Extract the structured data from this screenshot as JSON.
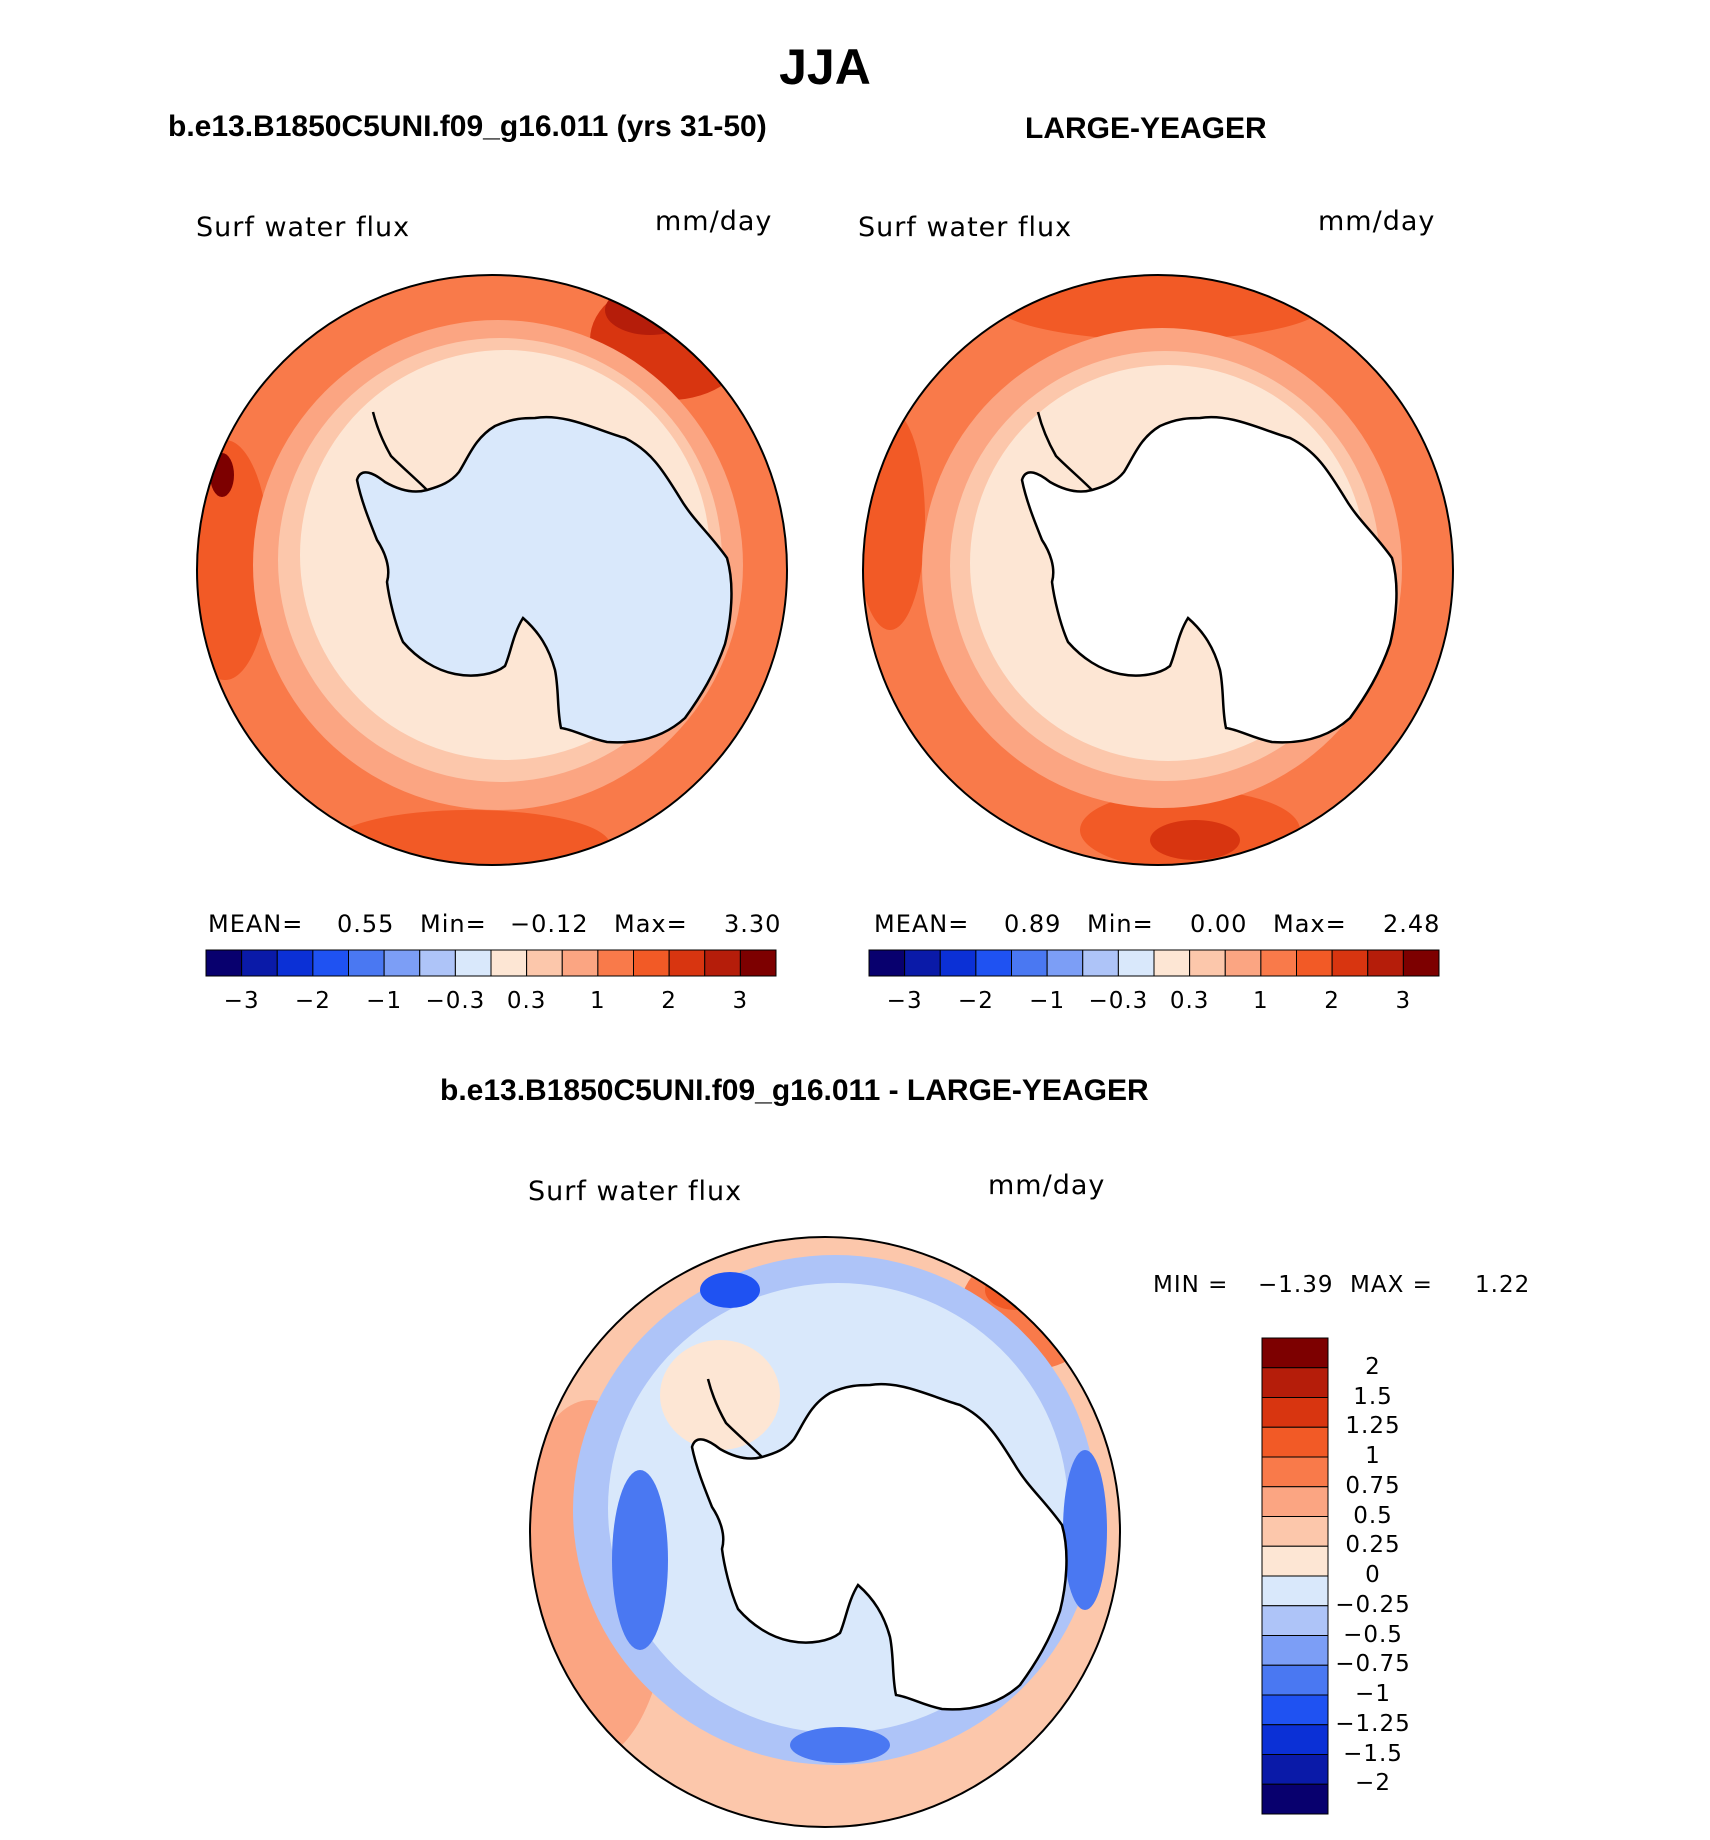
{
  "title": "JJA",
  "palette_main": [
    "#08006e",
    "#0a1aa8",
    "#0b30d6",
    "#1f52f2",
    "#4a78f2",
    "#7c9ef6",
    "#aec4f8",
    "#d9e8fb",
    "#fde6d4",
    "#fcc7ab",
    "#fba582",
    "#f97a4a",
    "#f25a26",
    "#d83510",
    "#b51d0a",
    "#7d0000"
  ],
  "palette_diff": [
    "#08006e",
    "#0a1aa8",
    "#0b30d6",
    "#1f52f2",
    "#4a78f2",
    "#7c9ef6",
    "#aec4f8",
    "#d9e8fb",
    "#fde6d4",
    "#fcc7ab",
    "#fba582",
    "#f97a4a",
    "#f25a26",
    "#d83510",
    "#b51d0a",
    "#7d0000"
  ],
  "panels": [
    {
      "case": "b.e13.B1850C5UNI.f09_g16.011 (yrs 31-50)",
      "variable": "Surf  water  flux",
      "units": "mm/day",
      "stats": {
        "mean_label": "MEAN=",
        "mean": "0.55",
        "min_label": "Min=",
        "min": "−0.12",
        "max_label": "Max=",
        "max": "3.30"
      },
      "colorbar_ticks": [
        "−3",
        "−2",
        "−1",
        "−0.3",
        "0.3",
        "1",
        "2",
        "3"
      ]
    },
    {
      "case": "LARGE-YEAGER",
      "variable": "Surf  water  flux",
      "units": "mm/day",
      "stats": {
        "mean_label": "MEAN=",
        "mean": "0.89",
        "min_label": "Min=",
        "min": "0.00",
        "max_label": "Max=",
        "max": "2.48"
      },
      "colorbar_ticks": [
        "−3",
        "−2",
        "−1",
        "−0.3",
        "0.3",
        "1",
        "2",
        "3"
      ]
    }
  ],
  "diff": {
    "title": "b.e13.B1850C5UNI.f09_g16.011 - LARGE-YEAGER",
    "variable": "Surf  water  flux",
    "units": "mm/day",
    "min_label": "MIN  =",
    "min": "−1.39",
    "max_label": "MAX  =",
    "max": "1.22",
    "colorbar_labels": [
      "2",
      "1.5",
      "1.25",
      "1",
      "0.75",
      "0.5",
      "0.25",
      "0",
      "−0.25",
      "−0.5",
      "−0.75",
      "−1",
      "−1.25",
      "−1.5",
      "−2"
    ]
  }
}
